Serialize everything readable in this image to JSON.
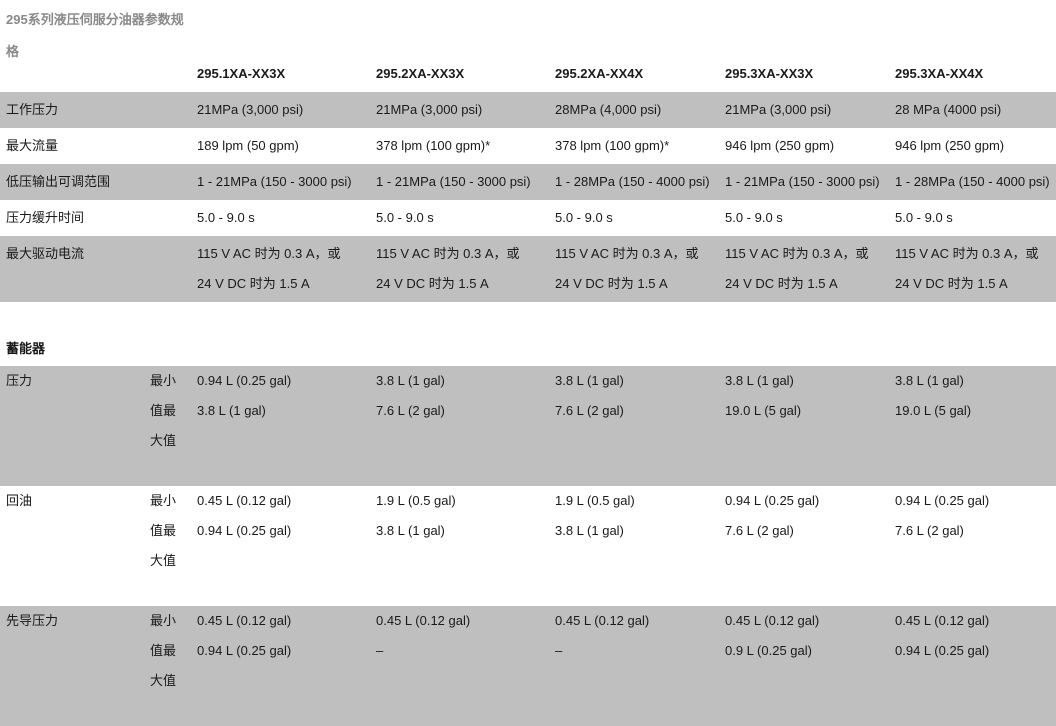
{
  "title": "295系列液压伺服分油器参数规格",
  "models": [
    "295.1XA-XX3X",
    "295.2XA-XX3X",
    "295.2XA-XX4X",
    "295.3XA-XX3X",
    "295.3XA-XX4X"
  ],
  "spec_rows": [
    {
      "label": "工作压力",
      "values": [
        "21MPa (3,000 psi)",
        "21MPa (3,000 psi)",
        "28MPa (4,000 psi)",
        "21MPa (3,000 psi)",
        "28 MPa (4000 psi)"
      ]
    },
    {
      "label": "最大流量",
      "values": [
        "189 lpm (50 gpm)",
        "378 lpm (100 gpm)*",
        "378 lpm (100 gpm)*",
        "946 lpm (250 gpm)",
        "946 lpm (250 gpm)"
      ]
    },
    {
      "label": "低压输出可调范围",
      "values": [
        "1 - 21MPa (150 - 3000 psi)",
        "1 - 21MPa (150 - 3000 psi)",
        "1 - 28MPa (150 - 4000 psi)",
        "1 - 21MPa (150 - 3000 psi)",
        "1 - 28MPa (150 - 4000 psi)"
      ]
    },
    {
      "label": "压力缓升时间",
      "values": [
        "5.0 - 9.0 s",
        "5.0 - 9.0 s",
        "5.0 - 9.0 s",
        "5.0 - 9.0 s",
        "5.0 - 9.0 s"
      ]
    },
    {
      "label": "最大驱动电流",
      "values": [
        [
          "115 V AC 时为 0.3 A，或",
          "24 V DC 时为 1.5 A"
        ],
        [
          "115 V AC 时为 0.3 A，或",
          "24 V DC 时为 1.5 A"
        ],
        [
          "115 V AC 时为 0.3 A，或",
          "24 V DC 时为 1.5 A"
        ],
        [
          "115 V AC 时为 0.3 A，或",
          "24 V DC 时为 1.5 A"
        ],
        [
          "115 V AC 时为 0.3 A，或",
          "24 V DC 时为 1.5 A"
        ]
      ]
    }
  ],
  "accumulator": {
    "heading": "蓄能器",
    "minmax_label": "最小值最大值",
    "rows": [
      {
        "label": "压力",
        "values": [
          [
            "0.94 L (0.25 gal)",
            "3.8 L (1 gal)"
          ],
          [
            "3.8 L (1 gal)",
            "7.6 L (2 gal)"
          ],
          [
            "3.8 L (1 gal)",
            "7.6 L (2 gal)"
          ],
          [
            "3.8 L (1 gal)",
            "19.0 L (5 gal)"
          ],
          [
            "3.8 L (1 gal)",
            "19.0 L (5 gal)"
          ]
        ]
      },
      {
        "label": "回油",
        "values": [
          [
            "0.45 L (0.12 gal)",
            "0.94 L (0.25 gal)"
          ],
          [
            "1.9 L (0.5 gal)",
            "3.8 L (1 gal)"
          ],
          [
            "1.9 L (0.5 gal)",
            "3.8 L (1 gal)"
          ],
          [
            "0.94 L (0.25 gal)",
            "7.6 L (2 gal)"
          ],
          [
            "0.94 L (0.25 gal)",
            "7.6 L (2 gal)"
          ]
        ]
      },
      {
        "label": "先导压力",
        "values": [
          [
            "0.45 L (0.12 gal)",
            "0.94 L (0.25 gal)"
          ],
          [
            "0.45 L (0.12 gal)",
            "–"
          ],
          [
            "0.45 L (0.12 gal)",
            "–"
          ],
          [
            "0.45 L (0.12 gal)",
            "0.9 L (0.25 gal)"
          ],
          [
            "0.45 L (0.12 gal)",
            "0.94 L (0.25 gal)"
          ]
        ]
      }
    ]
  },
  "colors": {
    "row_shade": "#bfbfbf",
    "title": "#8a8a8a"
  }
}
